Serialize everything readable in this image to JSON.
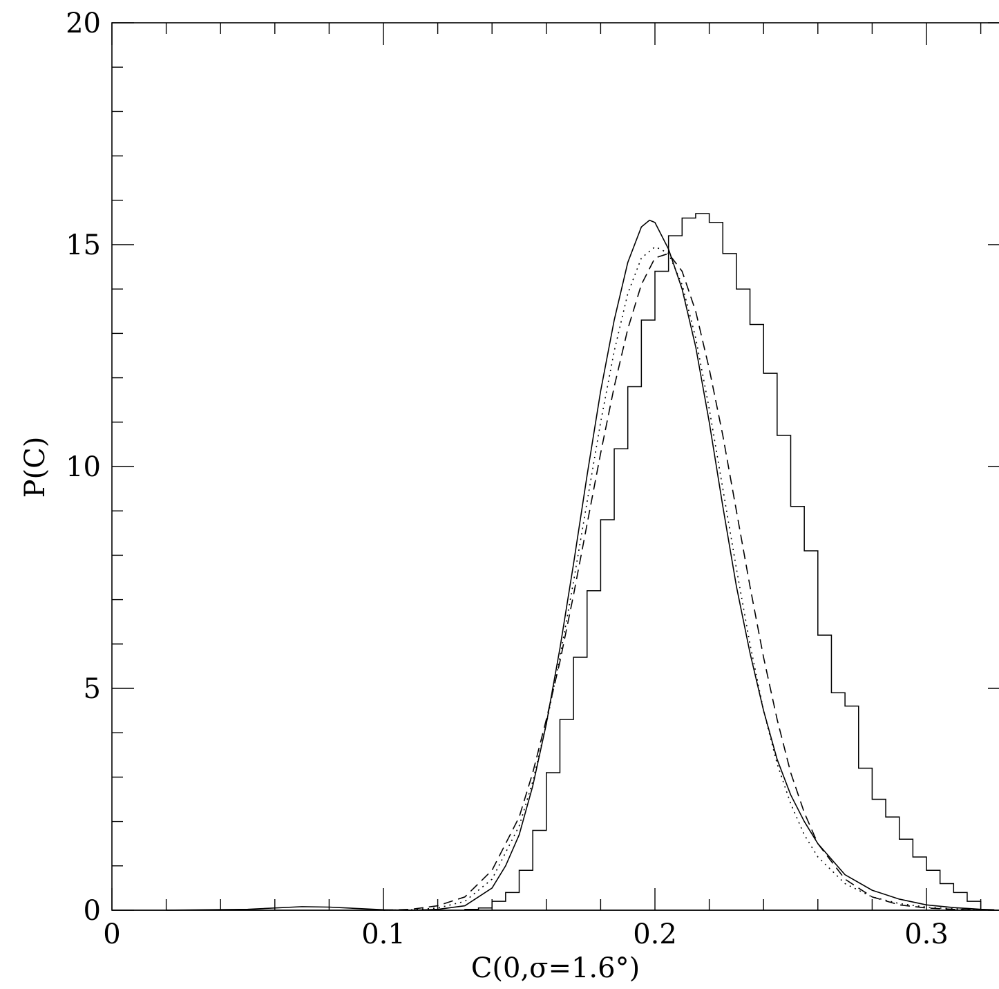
{
  "chart_data": {
    "type": "line",
    "title": "",
    "xlabel": "C(0,σ=1.6°)",
    "ylabel": "P(C)",
    "xlim": [
      0,
      0.325
    ],
    "ylim": [
      0,
      20
    ],
    "x_ticks": [
      "0",
      "0.1",
      "0.2",
      "0.3"
    ],
    "y_ticks": [
      "0",
      "5",
      "10",
      "15",
      "20"
    ],
    "grid": false,
    "legend": "none",
    "histogram": {
      "bin_width": 0.005,
      "bin_starts": [
        0.13,
        0.135,
        0.14,
        0.145,
        0.15,
        0.155,
        0.16,
        0.165,
        0.17,
        0.175,
        0.18,
        0.185,
        0.19,
        0.195,
        0.2,
        0.205,
        0.21,
        0.215,
        0.22,
        0.225,
        0.23,
        0.235,
        0.24,
        0.245,
        0.25,
        0.255,
        0.26,
        0.265,
        0.27,
        0.275,
        0.28,
        0.285,
        0.29,
        0.295,
        0.3,
        0.305,
        0.31,
        0.315
      ],
      "values": [
        0.02,
        0.05,
        0.2,
        0.4,
        0.9,
        1.8,
        3.1,
        4.3,
        5.7,
        7.2,
        8.8,
        10.4,
        11.8,
        13.3,
        14.4,
        15.2,
        15.6,
        15.7,
        15.5,
        14.8,
        14.0,
        13.2,
        12.1,
        10.7,
        9.1,
        8.1,
        6.2,
        4.9,
        4.6,
        3.2,
        2.5,
        2.1,
        1.6,
        1.2,
        0.9,
        0.6,
        0.4,
        0.2
      ]
    },
    "series": [
      {
        "style": "solid",
        "x": [
          0.02,
          0.05,
          0.07,
          0.08,
          0.09,
          0.1,
          0.11,
          0.12,
          0.13,
          0.14,
          0.145,
          0.15,
          0.155,
          0.16,
          0.165,
          0.17,
          0.175,
          0.18,
          0.185,
          0.19,
          0.195,
          0.198,
          0.2,
          0.205,
          0.21,
          0.215,
          0.22,
          0.225,
          0.23,
          0.235,
          0.24,
          0.245,
          0.25,
          0.255,
          0.26,
          0.27,
          0.28,
          0.29,
          0.3,
          0.31,
          0.32,
          0.325
        ],
        "y": [
          0.0,
          0.02,
          0.08,
          0.07,
          0.04,
          0.01,
          0.0,
          0.02,
          0.1,
          0.5,
          1.0,
          1.7,
          2.8,
          4.2,
          5.9,
          7.8,
          9.8,
          11.7,
          13.3,
          14.6,
          15.4,
          15.55,
          15.5,
          14.9,
          14.0,
          12.7,
          11.0,
          9.1,
          7.3,
          5.8,
          4.5,
          3.4,
          2.6,
          2.0,
          1.5,
          0.8,
          0.45,
          0.25,
          0.12,
          0.06,
          0.02,
          0.01
        ]
      },
      {
        "style": "dotted",
        "x": [
          0.1,
          0.11,
          0.12,
          0.13,
          0.14,
          0.15,
          0.155,
          0.16,
          0.165,
          0.17,
          0.175,
          0.18,
          0.185,
          0.19,
          0.195,
          0.2,
          0.202,
          0.205,
          0.21,
          0.215,
          0.22,
          0.225,
          0.23,
          0.235,
          0.24,
          0.245,
          0.25,
          0.255,
          0.26,
          0.27,
          0.28,
          0.29,
          0.3,
          0.31,
          0.32,
          0.325
        ],
        "y": [
          0.0,
          0.01,
          0.05,
          0.2,
          0.7,
          1.9,
          2.9,
          4.2,
          5.7,
          7.4,
          9.2,
          11.0,
          12.6,
          13.9,
          14.7,
          14.95,
          14.9,
          14.8,
          14.1,
          12.9,
          11.3,
          9.5,
          7.7,
          6.0,
          4.5,
          3.3,
          2.4,
          1.7,
          1.2,
          0.6,
          0.3,
          0.15,
          0.07,
          0.03,
          0.01,
          0.0
        ]
      },
      {
        "style": "dashed",
        "x": [
          0.1,
          0.11,
          0.12,
          0.13,
          0.14,
          0.15,
          0.155,
          0.16,
          0.165,
          0.17,
          0.175,
          0.18,
          0.185,
          0.19,
          0.195,
          0.2,
          0.205,
          0.21,
          0.215,
          0.22,
          0.225,
          0.23,
          0.235,
          0.24,
          0.245,
          0.25,
          0.255,
          0.26,
          0.27,
          0.28,
          0.29,
          0.3,
          0.31,
          0.32,
          0.325
        ],
        "y": [
          0.0,
          0.02,
          0.1,
          0.3,
          0.9,
          2.1,
          3.1,
          4.3,
          5.6,
          7.1,
          8.7,
          10.3,
          11.8,
          13.1,
          14.1,
          14.7,
          14.8,
          14.4,
          13.5,
          12.2,
          10.7,
          9.0,
          7.3,
          5.7,
          4.3,
          3.1,
          2.2,
          1.5,
          0.7,
          0.3,
          0.12,
          0.05,
          0.02,
          0.01,
          0.0
        ]
      }
    ]
  }
}
